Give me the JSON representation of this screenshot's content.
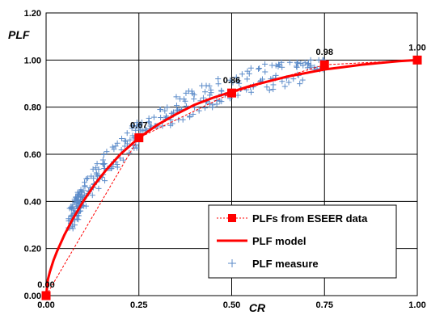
{
  "chart_data": {
    "type": "scatter",
    "xlabel": "CR",
    "ylabel": "PLF",
    "xlim": [
      0,
      1
    ],
    "ylim": [
      0,
      1.2
    ],
    "x_ticks": [
      "0.00",
      "0.25",
      "0.50",
      "0.75",
      "1.00"
    ],
    "y_ticks": [
      "0.00",
      "0.20",
      "0.40",
      "0.60",
      "0.80",
      "1.00",
      "1.20"
    ],
    "x_tick_values": [
      0,
      0.25,
      0.5,
      0.75,
      1
    ],
    "y_tick_values": [
      0,
      0.2,
      0.4,
      0.6,
      0.8,
      1.0,
      1.2
    ],
    "grid": true,
    "legend_position": "bottom-right",
    "colors": {
      "eseer": "#ff0000",
      "model": "#ff0000",
      "measure": "#5b8bc9"
    },
    "series": [
      {
        "name": "PLFs  from ESEER data",
        "kind": "points-dashed",
        "x": [
          0,
          0.25,
          0.5,
          0.75,
          1
        ],
        "y": [
          0,
          0.67,
          0.86,
          0.98,
          1.0
        ],
        "labels": [
          "0.00",
          "0.67",
          "0.86",
          "0.98",
          "1.00"
        ]
      },
      {
        "name": "PLF model",
        "kind": "line",
        "x": [
          0.0,
          0.005,
          0.01,
          0.02,
          0.03,
          0.05,
          0.07,
          0.1,
          0.13,
          0.16,
          0.2,
          0.25,
          0.3,
          0.35,
          0.4,
          0.45,
          0.5,
          0.55,
          0.6,
          0.65,
          0.7,
          0.75,
          0.8,
          0.85,
          0.9,
          0.95,
          1.0
        ],
        "y": [
          0.0,
          0.07,
          0.1,
          0.15,
          0.19,
          0.26,
          0.32,
          0.4,
          0.47,
          0.53,
          0.6,
          0.67,
          0.725,
          0.77,
          0.81,
          0.84,
          0.865,
          0.89,
          0.91,
          0.93,
          0.945,
          0.96,
          0.97,
          0.98,
          0.988,
          0.995,
          1.0
        ]
      },
      {
        "name": "PLF measure",
        "kind": "scatter",
        "clusters": [
          {
            "x_range": [
              0.06,
              0.1
            ],
            "y_range": [
              0.28,
              0.44
            ],
            "count": 70
          },
          {
            "x_range": [
              0.08,
              0.16
            ],
            "y_range": [
              0.38,
              0.56
            ],
            "count": 50
          },
          {
            "x_range": [
              0.15,
              0.28
            ],
            "y_range": [
              0.54,
              0.78
            ],
            "count": 60
          },
          {
            "x_range": [
              0.28,
              0.48
            ],
            "y_range": [
              0.72,
              0.94
            ],
            "count": 70
          },
          {
            "x_range": [
              0.48,
              0.7
            ],
            "y_range": [
              0.82,
              0.99
            ],
            "count": 60
          },
          {
            "x_range": [
              0.7,
              0.75
            ],
            "y_range": [
              0.96,
              1.0
            ],
            "count": 15
          }
        ]
      }
    ]
  }
}
